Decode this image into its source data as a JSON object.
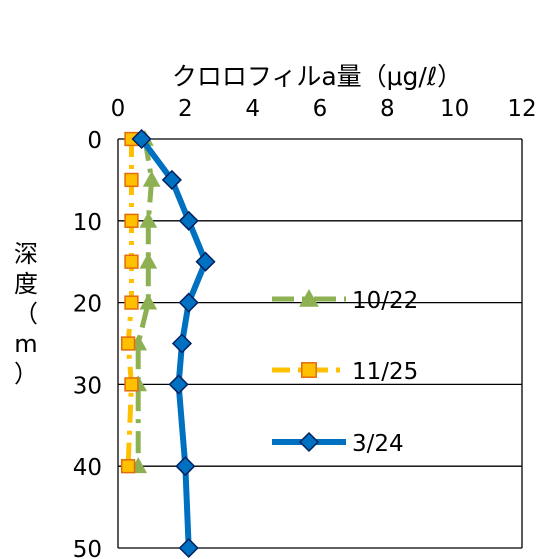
{
  "chart_data": {
    "type": "line",
    "title": "",
    "xlabel": "クロロフィルa量（μg/ℓ）",
    "ylabel": "深度（m）",
    "xlim": [
      0,
      12
    ],
    "ylim": [
      0,
      50
    ],
    "x_ticks": [
      "0",
      "2",
      "4",
      "6",
      "8",
      "10",
      "12"
    ],
    "y_ticks": [
      "0",
      "10",
      "20",
      "30",
      "40",
      "50"
    ],
    "x_axis_position": "top",
    "y_axis_inverted": true,
    "grid": "horizontal",
    "legend_position": "right-center",
    "series": [
      {
        "name": "10/22",
        "color": "#8DB152",
        "marker": "triangle",
        "line_style": "long-dash-dot",
        "points": [
          {
            "x": 0.8,
            "depth": 0
          },
          {
            "x": 1.0,
            "depth": 5
          },
          {
            "x": 0.9,
            "depth": 10
          },
          {
            "x": 0.9,
            "depth": 15
          },
          {
            "x": 0.9,
            "depth": 20
          },
          {
            "x": 0.6,
            "depth": 25
          },
          {
            "x": 0.6,
            "depth": 30
          },
          {
            "x": 0.6,
            "depth": 40
          }
        ]
      },
      {
        "name": "11/25",
        "color": "#FFC000",
        "marker_fill": "#FFC000",
        "marker_edge": "#E36C0A",
        "marker": "square",
        "line_style": "dash-dot",
        "points": [
          {
            "x": 0.4,
            "depth": 0
          },
          {
            "x": 0.4,
            "depth": 5
          },
          {
            "x": 0.4,
            "depth": 10
          },
          {
            "x": 0.4,
            "depth": 15
          },
          {
            "x": 0.4,
            "depth": 20
          },
          {
            "x": 0.3,
            "depth": 25
          },
          {
            "x": 0.4,
            "depth": 30
          },
          {
            "x": 0.3,
            "depth": 40
          }
        ]
      },
      {
        "name": "3/24",
        "color": "#0070C0",
        "marker": "diamond",
        "line_style": "solid",
        "points": [
          {
            "x": 0.7,
            "depth": 0
          },
          {
            "x": 1.6,
            "depth": 5
          },
          {
            "x": 2.1,
            "depth": 10
          },
          {
            "x": 2.6,
            "depth": 15
          },
          {
            "x": 2.1,
            "depth": 20
          },
          {
            "x": 1.9,
            "depth": 25
          },
          {
            "x": 1.8,
            "depth": 30
          },
          {
            "x": 2.0,
            "depth": 40
          },
          {
            "x": 2.1,
            "depth": 50
          }
        ]
      }
    ]
  }
}
